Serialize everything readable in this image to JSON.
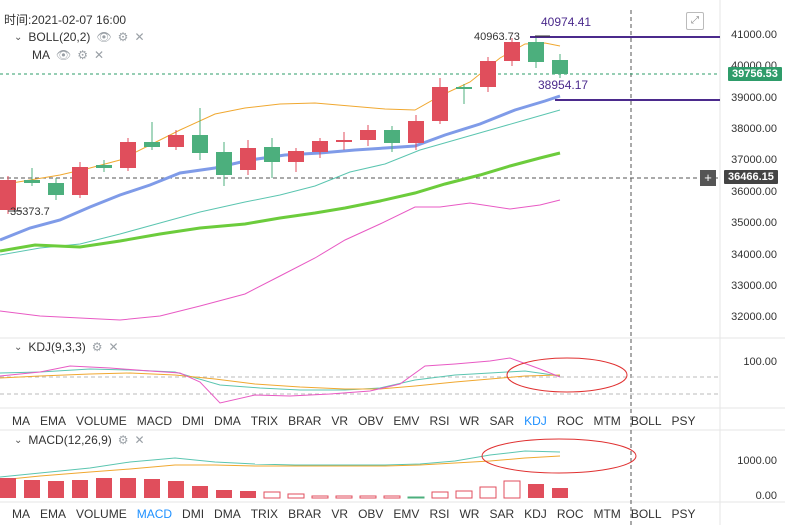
{
  "header": {
    "time_label": "时间:2021-02-07 16:00"
  },
  "main_legend": {
    "boll": "BOLL(20,2)",
    "ma": "MA"
  },
  "price_axis": {
    "ticks": [
      "41000.00",
      "40000.00",
      "39000.00",
      "38000.00",
      "37000.00",
      "36000.00",
      "35000.00",
      "34000.00",
      "33000.00",
      "32000.00"
    ],
    "current_price": "39756.53",
    "cursor_price": "36466.15"
  },
  "annotations": {
    "high_line_label": "40974.41",
    "high_candle_label": "40963.73",
    "low_line_label": "38954.17",
    "low_candle_label": "35373.7"
  },
  "kdj_panel": {
    "title": "KDJ(9,3,3)",
    "axis_tick": "100.00"
  },
  "indicator_tabs_top": [
    "MA",
    "EMA",
    "VOLUME",
    "MACD",
    "DMI",
    "DMA",
    "TRIX",
    "BRAR",
    "VR",
    "OBV",
    "EMV",
    "RSI",
    "WR",
    "SAR",
    "KDJ",
    "ROC",
    "MTM",
    "BOLL",
    "PSY"
  ],
  "indicator_tabs_top_active": "KDJ",
  "macd_panel": {
    "title": "MACD(12,26,9)",
    "axis_ticks": [
      "1000.00",
      "0.00"
    ]
  },
  "indicator_tabs_bottom": [
    "MA",
    "EMA",
    "VOLUME",
    "MACD",
    "DMI",
    "DMA",
    "TRIX",
    "BRAR",
    "VR",
    "OBV",
    "EMV",
    "RSI",
    "WR",
    "SAR",
    "KDJ",
    "ROC",
    "MTM",
    "BOLL",
    "PSY"
  ],
  "indicator_tabs_bottom_active": "MACD",
  "colors": {
    "up": "#e04e5c",
    "down": "#4caf7d",
    "accent": "#1e90ff",
    "purple": "#4b2a8c"
  }
}
